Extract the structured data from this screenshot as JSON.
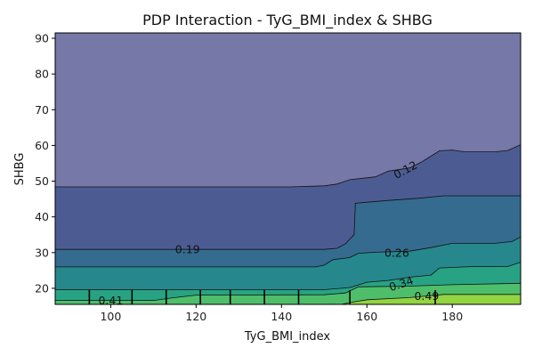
{
  "chart_data": {
    "type": "contour",
    "title": "PDP Interaction - TyG_BMI_index & SHBG",
    "xlabel": "TyG_BMI_index",
    "ylabel": "SHBG",
    "xlim": [
      87,
      196
    ],
    "ylim": [
      15.5,
      91.5
    ],
    "xticks": [
      100,
      120,
      140,
      160,
      180
    ],
    "yticks": [
      20,
      30,
      40,
      50,
      60,
      70,
      80,
      90
    ],
    "colors": [
      "#414487",
      "#3b528b",
      "#2c728e",
      "#21918c",
      "#28ae80",
      "#5ec962",
      "#addc30",
      "#fde725"
    ],
    "fill_alpha": 0.72,
    "contour_levels": [
      {
        "value": "0.12",
        "points": [
          [
            87,
            48.4
          ],
          [
            142,
            48.4
          ],
          [
            150,
            48.7
          ],
          [
            153,
            49.2
          ],
          [
            156,
            50.4
          ],
          [
            162,
            51.2
          ],
          [
            165,
            52.8
          ],
          [
            170,
            53.7
          ],
          [
            173,
            55.5
          ],
          [
            177,
            58.5
          ],
          [
            180,
            58.7
          ],
          [
            183,
            58.2
          ],
          [
            190,
            58.2
          ],
          [
            193,
            58.6
          ],
          [
            196,
            60.2
          ]
        ]
      },
      {
        "value": "0.19",
        "points": [
          [
            87,
            30.9
          ],
          [
            150,
            30.9
          ],
          [
            153,
            31.2
          ],
          [
            155,
            32.5
          ],
          [
            156,
            33.8
          ],
          [
            157,
            35
          ],
          [
            157.3,
            43.8
          ],
          [
            160,
            44.1
          ],
          [
            165,
            44.6
          ],
          [
            172,
            45.2
          ],
          [
            178,
            45.9
          ],
          [
            185,
            45.9
          ],
          [
            196,
            45.9
          ]
        ]
      },
      {
        "value": "0.26",
        "points": [
          [
            87,
            26.0
          ],
          [
            148,
            26.0
          ],
          [
            150,
            26.5
          ],
          [
            152,
            28
          ],
          [
            156,
            28.6
          ],
          [
            158,
            29.8
          ],
          [
            162,
            30.1
          ],
          [
            170,
            30.4
          ],
          [
            175,
            31.4
          ],
          [
            180,
            32.6
          ],
          [
            190,
            32.6
          ],
          [
            194,
            33.1
          ],
          [
            196,
            34.4
          ]
        ]
      },
      {
        "value": "0.34",
        "points": [
          [
            87,
            19.6
          ],
          [
            150,
            19.6
          ],
          [
            156,
            20.2
          ],
          [
            160,
            21.7
          ],
          [
            165,
            22.2
          ],
          [
            170,
            23.1
          ],
          [
            175,
            23.7
          ],
          [
            177,
            25.7
          ],
          [
            185,
            26.1
          ],
          [
            193,
            26.1
          ],
          [
            196,
            27.3
          ]
        ]
      },
      {
        "value": "0.41",
        "points": [
          [
            87,
            16.6
          ],
          [
            110,
            16.6
          ],
          [
            115,
            17.4
          ],
          [
            120,
            18.1
          ],
          [
            150,
            18.2
          ],
          [
            155,
            18.7
          ],
          [
            158,
            20.4
          ],
          [
            170,
            20.6
          ],
          [
            180,
            21.0
          ],
          [
            196,
            21.4
          ]
        ]
      },
      {
        "value": "0.49",
        "points": [
          [
            154,
            15.5
          ],
          [
            156,
            16.0
          ],
          [
            160,
            16.8
          ],
          [
            170,
            17.4
          ],
          [
            178,
            18.3
          ],
          [
            187,
            18.3
          ],
          [
            196,
            18.3
          ]
        ]
      }
    ],
    "contour_labels": [
      {
        "text": "0.12",
        "x": 169,
        "y": 53.2,
        "angle": -28
      },
      {
        "text": "0.19",
        "x": 118,
        "y": 30.9,
        "angle": 0
      },
      {
        "text": "0.26",
        "x": 167,
        "y": 30.0,
        "angle": 0
      },
      {
        "text": "0.34",
        "x": 168,
        "y": 21.3,
        "angle": -18
      },
      {
        "text": "0.41",
        "x": 100,
        "y": 16.6,
        "angle": 0
      },
      {
        "text": "0.49",
        "x": 174,
        "y": 17.9,
        "angle": 0
      }
    ],
    "rug_x": [
      95,
      105,
      113,
      121,
      128,
      136,
      144,
      156,
      176
    ]
  }
}
